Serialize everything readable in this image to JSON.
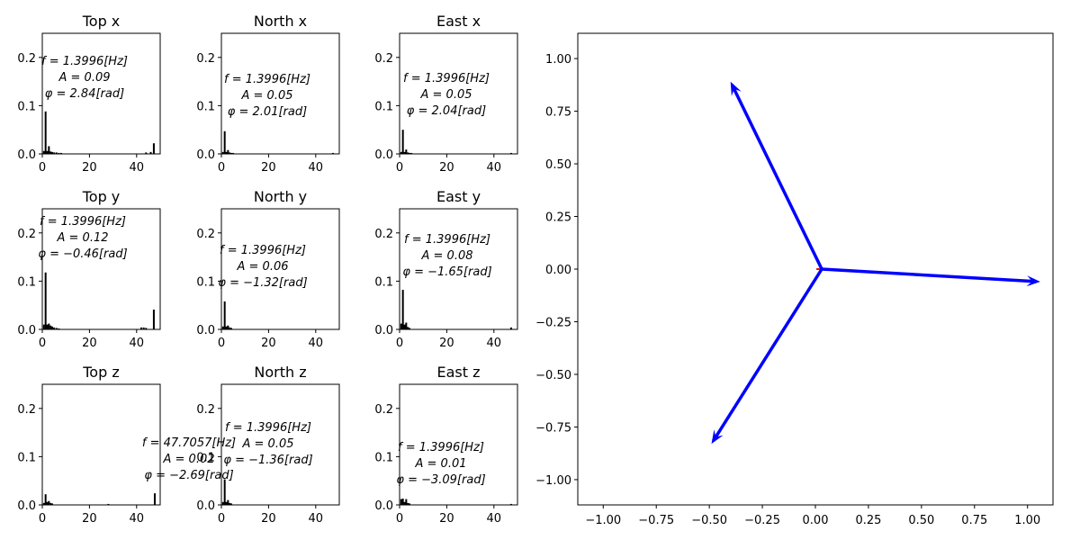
{
  "chart_data": [
    {
      "type": "bar",
      "title": "Top x",
      "xlim": [
        0,
        50
      ],
      "ylim": [
        0,
        0.25
      ],
      "xticks": [
        "0",
        "20",
        "40"
      ],
      "yticks": [
        "0.0",
        "0.1",
        "0.2"
      ],
      "series": [
        {
          "x": [
            0.7,
            1.4,
            2.1,
            2.8,
            3.5,
            4.2,
            5.0,
            6.0,
            7.0,
            8.0,
            44.0,
            46.0,
            47.3
          ],
          "values": [
            0.006,
            0.088,
            0.006,
            0.016,
            0.005,
            0.004,
            0.003,
            0.003,
            0.002,
            0.002,
            0.003,
            0.004,
            0.022
          ]
        }
      ],
      "annotation": [
        "f = 1.3996[Hz]",
        "A = 0.09",
        "φ = 2.84[rad]"
      ]
    },
    {
      "type": "bar",
      "title": "North x",
      "xlim": [
        0,
        50
      ],
      "ylim": [
        0,
        0.25
      ],
      "xticks": [
        "0",
        "20",
        "40"
      ],
      "yticks": [
        "0.0",
        "0.1",
        "0.2"
      ],
      "series": [
        {
          "x": [
            0.7,
            1.4,
            2.1,
            2.8,
            3.5,
            4.2,
            5.0,
            47.3
          ],
          "values": [
            0.004,
            0.047,
            0.004,
            0.008,
            0.003,
            0.002,
            0.002,
            0.002
          ]
        }
      ],
      "annotation": [
        "f = 1.3996[Hz]",
        "A = 0.05",
        "φ = 2.01[rad]"
      ]
    },
    {
      "type": "bar",
      "title": "East x",
      "xlim": [
        0,
        50
      ],
      "ylim": [
        0,
        0.25
      ],
      "xticks": [
        "0",
        "20",
        "40"
      ],
      "yticks": [
        "0.0",
        "0.1",
        "0.2"
      ],
      "series": [
        {
          "x": [
            0.7,
            1.4,
            2.1,
            2.8,
            3.5,
            4.2,
            5.0,
            47.3
          ],
          "values": [
            0.004,
            0.05,
            0.004,
            0.009,
            0.003,
            0.002,
            0.002,
            0.002
          ]
        }
      ],
      "annotation": [
        "f = 1.3996[Hz]",
        "A = 0.05",
        "φ = 2.04[rad]"
      ]
    },
    {
      "type": "bar",
      "title": "Top y",
      "xlim": [
        0,
        50
      ],
      "ylim": [
        0,
        0.25
      ],
      "xticks": [
        "0",
        "20",
        "40"
      ],
      "yticks": [
        "0.0",
        "0.1",
        "0.2"
      ],
      "series": [
        {
          "x": [
            0.7,
            1.4,
            2.1,
            2.8,
            3.5,
            4.2,
            5.0,
            6.0,
            7.0,
            42.0,
            43.0,
            44.0,
            47.3
          ],
          "values": [
            0.01,
            0.118,
            0.01,
            0.012,
            0.008,
            0.006,
            0.004,
            0.003,
            0.002,
            0.004,
            0.004,
            0.003,
            0.041
          ]
        }
      ],
      "annotation": [
        "f = 1.3996[Hz]",
        "A = 0.12",
        "φ = −0.46[rad]"
      ]
    },
    {
      "type": "bar",
      "title": "North y",
      "xlim": [
        0,
        50
      ],
      "ylim": [
        0,
        0.25
      ],
      "xticks": [
        "0",
        "20",
        "40"
      ],
      "yticks": [
        "0.0",
        "0.1",
        "0.2"
      ],
      "series": [
        {
          "x": [
            0.7,
            1.4,
            2.1,
            2.8,
            3.5,
            4.2
          ],
          "values": [
            0.006,
            0.058,
            0.006,
            0.008,
            0.004,
            0.003
          ]
        }
      ],
      "annotation": [
        "f = 1.3996[Hz]",
        "A = 0.06",
        "φ = −1.32[rad]"
      ]
    },
    {
      "type": "bar",
      "title": "East y",
      "xlim": [
        0,
        50
      ],
      "ylim": [
        0,
        0.25
      ],
      "xticks": [
        "0",
        "20",
        "40"
      ],
      "yticks": [
        "0.0",
        "0.1",
        "0.2"
      ],
      "series": [
        {
          "x": [
            0.7,
            1.4,
            2.1,
            2.8,
            3.5,
            4.2,
            47.3
          ],
          "values": [
            0.012,
            0.082,
            0.01,
            0.014,
            0.005,
            0.003,
            0.004
          ]
        }
      ],
      "annotation": [
        "f = 1.3996[Hz]",
        "A = 0.08",
        "φ = −1.65[rad]"
      ]
    },
    {
      "type": "bar",
      "title": "Top z",
      "xlim": [
        0,
        50
      ],
      "ylim": [
        0,
        0.25
      ],
      "xticks": [
        "0",
        "20",
        "40"
      ],
      "yticks": [
        "0.0",
        "0.1",
        "0.2"
      ],
      "series": [
        {
          "x": [
            0.7,
            1.4,
            2.1,
            2.8,
            3.5,
            4.2,
            28.0,
            47.7
          ],
          "values": [
            0.004,
            0.022,
            0.006,
            0.008,
            0.004,
            0.003,
            0.002,
            0.024
          ]
        }
      ],
      "annotation": [
        "f = 47.7057[Hz]",
        "A = 0.02",
        "φ = −2.69[rad]"
      ]
    },
    {
      "type": "bar",
      "title": "North z",
      "xlim": [
        0,
        50
      ],
      "ylim": [
        0,
        0.25
      ],
      "xticks": [
        "0",
        "20",
        "40"
      ],
      "yticks": [
        "0.0",
        "0.1",
        "0.2"
      ],
      "series": [
        {
          "x": [
            0.7,
            1.4,
            2.1,
            2.8,
            3.5,
            4.2
          ],
          "values": [
            0.006,
            0.053,
            0.006,
            0.01,
            0.004,
            0.003
          ]
        }
      ],
      "annotation": [
        "f = 1.3996[Hz]",
        "A = 0.05",
        "φ = −1.36[rad]"
      ]
    },
    {
      "type": "bar",
      "title": "East z",
      "xlim": [
        0,
        50
      ],
      "ylim": [
        0,
        0.25
      ],
      "xticks": [
        "0",
        "20",
        "40"
      ],
      "yticks": [
        "0.0",
        "0.1",
        "0.2"
      ],
      "series": [
        {
          "x": [
            0.7,
            1.4,
            2.1,
            2.8,
            3.5,
            4.2,
            47.3
          ],
          "values": [
            0.012,
            0.013,
            0.006,
            0.012,
            0.004,
            0.003,
            0.002
          ]
        }
      ],
      "annotation": [
        "f = 1.3996[Hz]",
        "A = 0.01",
        "φ = −3.09[rad]"
      ]
    },
    {
      "type": "vector",
      "title": "",
      "xlim": [
        -1.12,
        1.12
      ],
      "ylim": [
        -1.12,
        1.12
      ],
      "xticks": [
        "−1.00",
        "−0.75",
        "−0.50",
        "−0.25",
        "0.00",
        "0.25",
        "0.50",
        "0.75",
        "1.00"
      ],
      "yticks": [
        "1.00",
        "0.75",
        "0.50",
        "0.25",
        "0.00",
        "−0.25",
        "−0.50",
        "−0.75",
        "−1.00"
      ],
      "origin": [
        0.03,
        0.0
      ],
      "vectors": [
        {
          "x": -0.43,
          "y": 0.89,
          "color": "#0000ff"
        },
        {
          "x": 1.03,
          "y": -0.06,
          "color": "#0000ff"
        },
        {
          "x": -0.52,
          "y": -0.83,
          "color": "#0000ff"
        }
      ],
      "small_vector": {
        "x": 0.0,
        "y": 0.0,
        "color": "#ff0000"
      }
    }
  ]
}
